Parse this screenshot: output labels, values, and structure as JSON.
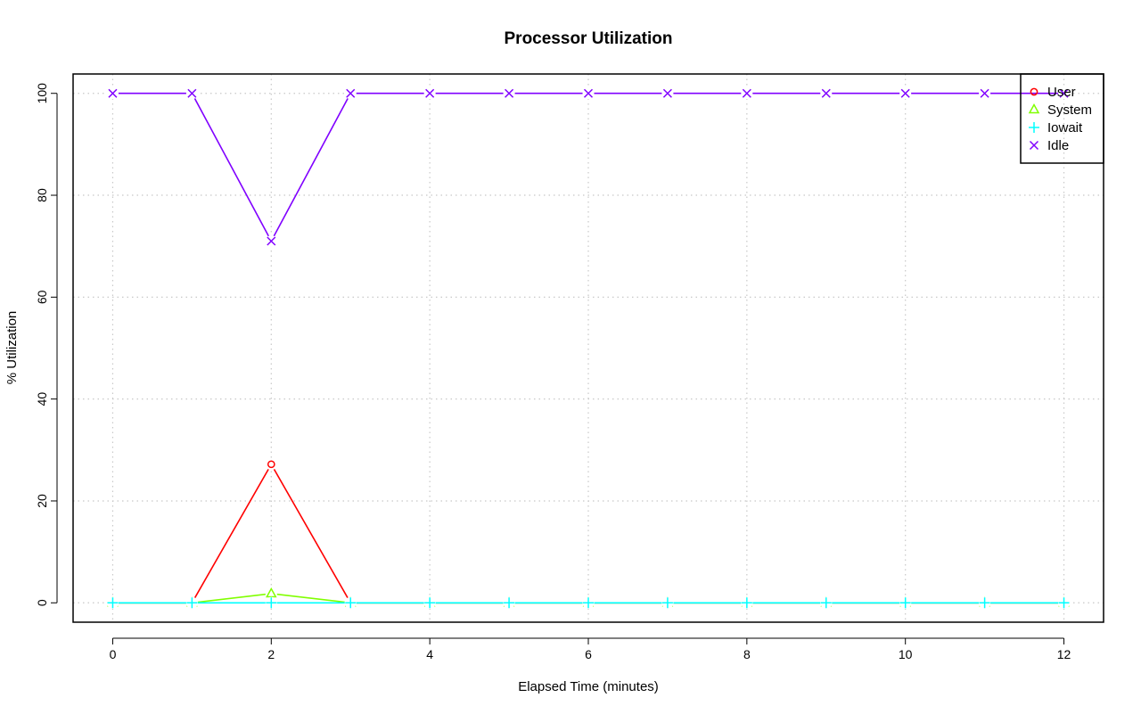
{
  "chart_data": {
    "type": "line",
    "title": "Processor Utilization",
    "xlabel": "Elapsed Time (minutes)",
    "ylabel": "% Utilization",
    "x": [
      0,
      1,
      2,
      3,
      4,
      5,
      6,
      7,
      8,
      9,
      10,
      11,
      12
    ],
    "xlim": [
      -0.5,
      12.5
    ],
    "ylim": [
      -3.8,
      103.8
    ],
    "x_ticks": [
      0,
      2,
      4,
      6,
      8,
      10,
      12
    ],
    "y_ticks": [
      0,
      20,
      40,
      60,
      80,
      100
    ],
    "grid": true,
    "legend_position": "top-right",
    "series": [
      {
        "name": "User",
        "color": "#ff0000",
        "marker": "circle",
        "values": [
          0,
          0,
          27.2,
          0,
          0,
          0,
          0,
          0,
          0,
          0,
          0,
          0,
          0
        ]
      },
      {
        "name": "System",
        "color": "#80ff00",
        "marker": "triangle",
        "values": [
          0,
          0,
          1.8,
          0,
          0,
          0,
          0,
          0,
          0,
          0,
          0,
          0,
          0
        ]
      },
      {
        "name": "Iowait",
        "color": "#00ffff",
        "marker": "plus",
        "values": [
          0,
          0,
          0,
          0,
          0,
          0,
          0,
          0,
          0,
          0,
          0,
          0,
          0
        ]
      },
      {
        "name": "Idle",
        "color": "#8000ff",
        "marker": "cross",
        "values": [
          100,
          100,
          71,
          100,
          100,
          100,
          100,
          100,
          100,
          100,
          100,
          100,
          100
        ]
      }
    ]
  }
}
